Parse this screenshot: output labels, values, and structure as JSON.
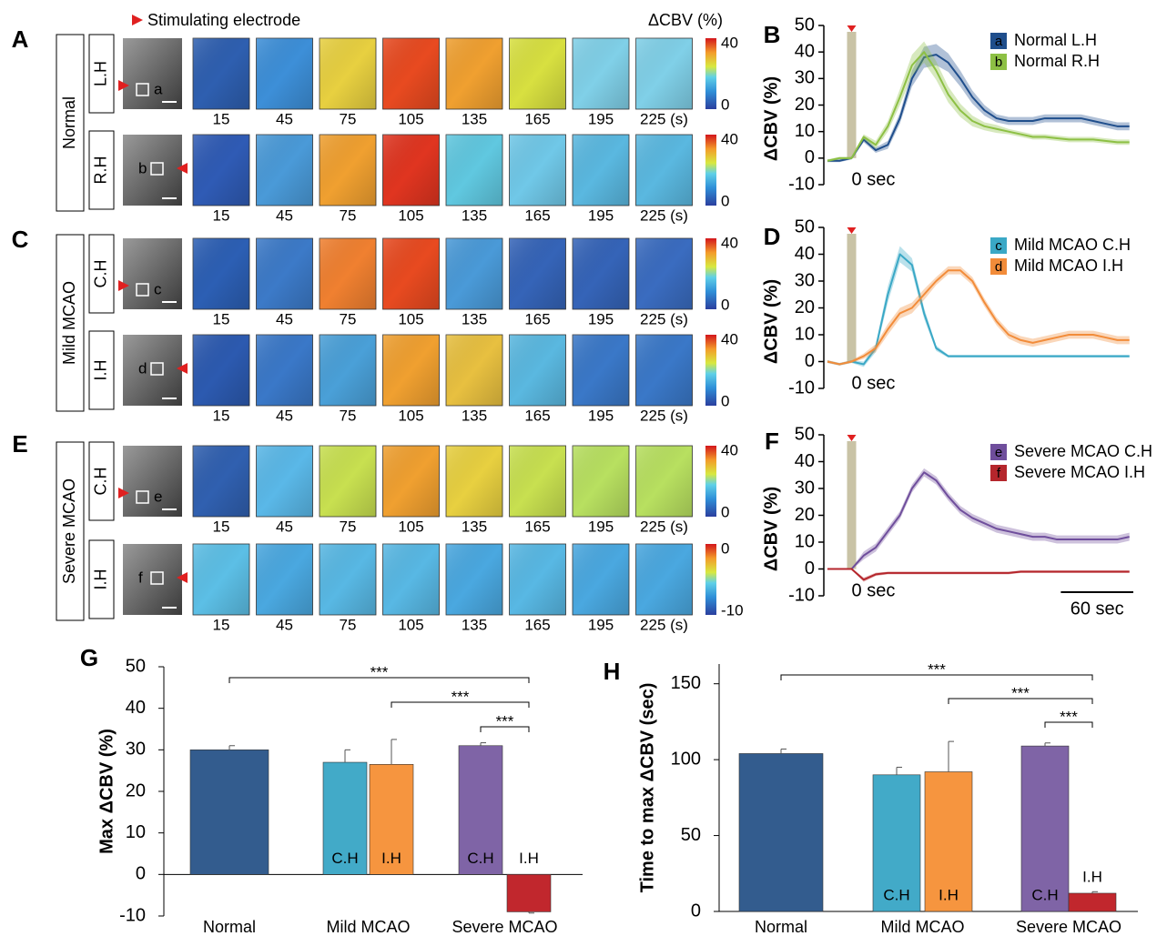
{
  "header": {
    "stim_label": "Stimulating electrode",
    "colorbar_title": "ΔCBV (%)"
  },
  "time_labels": [
    "15",
    "45",
    "75",
    "105",
    "135",
    "165",
    "195",
    "225 (s)"
  ],
  "image_panels": [
    {
      "letter": "A",
      "group": "Normal",
      "rows": [
        {
          "hemi": "L.H",
          "roi": "a",
          "cbar_ticks": [
            40,
            0
          ]
        },
        {
          "hemi": "R.H",
          "roi": "b",
          "cbar_ticks": [
            40,
            0
          ]
        }
      ]
    },
    {
      "letter": "C",
      "group": "Mild MCAO",
      "rows": [
        {
          "hemi": "C.H",
          "roi": "c",
          "cbar_ticks": [
            40,
            0
          ]
        },
        {
          "hemi": "I.H",
          "roi": "d",
          "cbar_ticks": [
            40,
            0
          ]
        }
      ]
    },
    {
      "letter": "E",
      "group": "Severe MCAO",
      "rows": [
        {
          "hemi": "C.H",
          "roi": "e",
          "cbar_ticks": [
            40,
            0
          ]
        },
        {
          "hemi": "I.H",
          "roi": "f",
          "cbar_ticks": [
            0,
            -10
          ]
        }
      ]
    }
  ],
  "chart_data": [
    {
      "type": "line",
      "label": "B",
      "ylabel": "ΔCBV (%)",
      "annotation": "0 sec",
      "x": [
        -20,
        -10,
        0,
        10,
        20,
        30,
        40,
        50,
        60,
        70,
        80,
        90,
        100,
        110,
        120,
        130,
        140,
        150,
        160,
        170,
        180,
        190,
        200,
        210,
        220,
        230
      ],
      "xlim": [
        -23,
        237
      ],
      "ylim": [
        -10,
        50
      ],
      "yticks": [
        -10,
        0,
        10,
        20,
        30,
        40,
        50
      ],
      "series": [
        {
          "key": "a",
          "name": "Normal L.H",
          "color": "#1f4e8c",
          "values": [
            -1,
            -1,
            0,
            7,
            3,
            5,
            15,
            30,
            38,
            39,
            36,
            30,
            23,
            18,
            15,
            14,
            14,
            14,
            15,
            15,
            15,
            15,
            14,
            13,
            12,
            12
          ],
          "errors": [
            0.5,
            0.5,
            0.5,
            1,
            1,
            1.5,
            2,
            3,
            4,
            4,
            3.5,
            3,
            2.5,
            2,
            1.5,
            1.5,
            1.5,
            1.5,
            1.5,
            1.5,
            1.5,
            1.5,
            1.5,
            1.5,
            1.5,
            1.5
          ]
        },
        {
          "key": "b",
          "name": "Normal R.H",
          "color": "#8dc044",
          "values": [
            -1,
            0,
            0,
            8,
            5,
            12,
            23,
            35,
            40,
            33,
            24,
            18,
            14,
            12,
            11,
            10,
            9,
            8,
            8,
            7.5,
            7,
            7,
            7,
            6.5,
            6,
            6
          ],
          "errors": [
            0.5,
            0.5,
            0.5,
            1,
            1.5,
            2,
            3,
            4,
            4,
            3.5,
            3,
            2.5,
            2,
            1.5,
            1.5,
            1,
            1,
            1,
            1,
            1,
            1,
            1,
            1,
            1,
            1,
            1
          ]
        }
      ]
    },
    {
      "type": "line",
      "label": "D",
      "ylabel": "ΔCBV (%)",
      "annotation": "0 sec",
      "x": [
        -20,
        -10,
        0,
        10,
        20,
        30,
        40,
        50,
        60,
        70,
        80,
        90,
        100,
        110,
        120,
        130,
        140,
        150,
        160,
        170,
        180,
        190,
        200,
        210,
        220,
        230
      ],
      "xlim": [
        -23,
        237
      ],
      "ylim": [
        -10,
        50
      ],
      "yticks": [
        -10,
        0,
        10,
        20,
        30,
        40,
        50
      ],
      "series": [
        {
          "key": "c",
          "name": "Mild MCAO C.H",
          "color": "#3aa8c6",
          "values": [
            0,
            -1,
            0,
            -1,
            5,
            25,
            40,
            36,
            18,
            5,
            2,
            2,
            2,
            2,
            2,
            2,
            2,
            2,
            2,
            2,
            2,
            2,
            2,
            2,
            2,
            2
          ],
          "errors": [
            0.5,
            0.5,
            0.5,
            1,
            1.5,
            3,
            3,
            2.5,
            2,
            1,
            0.5,
            0.5,
            0.5,
            0.5,
            0.5,
            0.5,
            0.5,
            0.5,
            0.5,
            0.5,
            0.5,
            0.5,
            0.5,
            0.5,
            0.5,
            0.5
          ]
        },
        {
          "key": "d",
          "name": "Mild MCAO I.H",
          "color": "#f28c3a",
          "values": [
            0,
            -1,
            0,
            2,
            5,
            12,
            18,
            20,
            25,
            30,
            34,
            34,
            30,
            22,
            15,
            10,
            8,
            7,
            8,
            9,
            10,
            10,
            10,
            9,
            8,
            8
          ],
          "errors": [
            0.5,
            0.5,
            0.5,
            1,
            1.5,
            2,
            2,
            2,
            2,
            1.5,
            1.5,
            1.5,
            1.5,
            1.5,
            1.5,
            1.5,
            1.5,
            1.5,
            1.5,
            1.5,
            1.5,
            1.5,
            1.5,
            1.5,
            1.5,
            1.5
          ]
        }
      ]
    },
    {
      "type": "line",
      "label": "F",
      "ylabel": "ΔCBV (%)",
      "annotation": "0 sec",
      "scale_bar": {
        "value": 60,
        "label": "60 sec"
      },
      "x": [
        -20,
        -10,
        0,
        10,
        20,
        30,
        40,
        50,
        60,
        70,
        80,
        90,
        100,
        110,
        120,
        130,
        140,
        150,
        160,
        170,
        180,
        190,
        200,
        210,
        220,
        230
      ],
      "xlim": [
        -23,
        237
      ],
      "ylim": [
        -10,
        50
      ],
      "yticks": [
        -10,
        0,
        10,
        20,
        30,
        40,
        50
      ],
      "series": [
        {
          "key": "e",
          "name": "Severe MCAO C.H",
          "color": "#6f4e9c",
          "values": [
            0,
            0,
            0,
            5,
            8,
            14,
            20,
            30,
            36,
            33,
            27,
            22,
            19,
            17,
            15,
            14,
            13,
            12,
            12,
            11,
            11,
            11,
            11,
            11,
            11,
            12
          ],
          "errors": [
            0.3,
            0.3,
            0.3,
            1.5,
            1.5,
            1.5,
            1.5,
            1.5,
            1.5,
            1.5,
            1.5,
            1.5,
            1.5,
            1.5,
            1.5,
            1.5,
            1.5,
            1.5,
            1.5,
            1.5,
            1.5,
            1.5,
            1.5,
            1.5,
            1.5,
            1.5
          ]
        },
        {
          "key": "f",
          "name": "Severe MCAO I.H",
          "color": "#b5262c",
          "values": [
            0,
            0,
            0,
            -4,
            -2,
            -1.5,
            -1.5,
            -1.5,
            -1.5,
            -1.5,
            -1.5,
            -1.5,
            -1.5,
            -1.5,
            -1.5,
            -1.5,
            -1,
            -1,
            -1,
            -1,
            -1,
            -1,
            -1,
            -1,
            -1,
            -1
          ],
          "errors": [
            0.3,
            0.3,
            0.3,
            0.8,
            0.6,
            0.5,
            0.5,
            0.5,
            0.5,
            0.5,
            0.5,
            0.5,
            0.5,
            0.5,
            0.5,
            0.5,
            0.5,
            0.5,
            0.5,
            0.5,
            0.5,
            0.5,
            0.5,
            0.5,
            0.5,
            0.5
          ]
        }
      ]
    },
    {
      "type": "bar",
      "label": "G",
      "ylabel": "Max ΔCBV (%)",
      "ylim": [
        -10,
        50
      ],
      "yticks": [
        -10,
        0,
        10,
        20,
        30,
        40,
        50
      ],
      "groups": [
        {
          "name": "Normal",
          "bars": [
            {
              "color": "#335c8e",
              "value": 30,
              "error": 1
            }
          ]
        },
        {
          "name": "Mild MCAO",
          "bars": [
            {
              "label": "C.H",
              "color": "#42aac8",
              "value": 27,
              "error": 3
            },
            {
              "label": "I.H",
              "color": "#f6953f",
              "value": 26.5,
              "error": 6
            }
          ]
        },
        {
          "name": "Severe MCAO",
          "bars": [
            {
              "label": "C.H",
              "color": "#7f64a6",
              "value": 31,
              "error": 0.7
            },
            {
              "label": "I.H",
              "color": "#c1272d",
              "value": -9,
              "error": 0.3
            }
          ]
        }
      ],
      "brackets": [
        {
          "label": "***"
        },
        {
          "label": "***"
        },
        {
          "label": "***"
        }
      ]
    },
    {
      "type": "bar",
      "label": "H",
      "ylabel": "Time to max ΔCBV (sec)",
      "ylim": [
        0,
        163
      ],
      "yticks": [
        0,
        50,
        100,
        150
      ],
      "groups": [
        {
          "name": "Normal",
          "bars": [
            {
              "color": "#335c8e",
              "value": 104,
              "error": 3
            }
          ]
        },
        {
          "name": "Mild MCAO",
          "bars": [
            {
              "label": "C.H",
              "color": "#42aac8",
              "value": 90,
              "error": 5
            },
            {
              "label": "I.H",
              "color": "#f6953f",
              "value": 92,
              "error": 20
            }
          ]
        },
        {
          "name": "Severe MCAO",
          "bars": [
            {
              "label": "C.H",
              "color": "#7f64a6",
              "value": 109,
              "error": 2
            },
            {
              "label": "I.H",
              "color": "#c1272d",
              "value": 12,
              "error": 1
            }
          ]
        }
      ],
      "brackets": [
        {
          "label": "***"
        },
        {
          "label": "***"
        },
        {
          "label": "***"
        }
      ]
    }
  ]
}
